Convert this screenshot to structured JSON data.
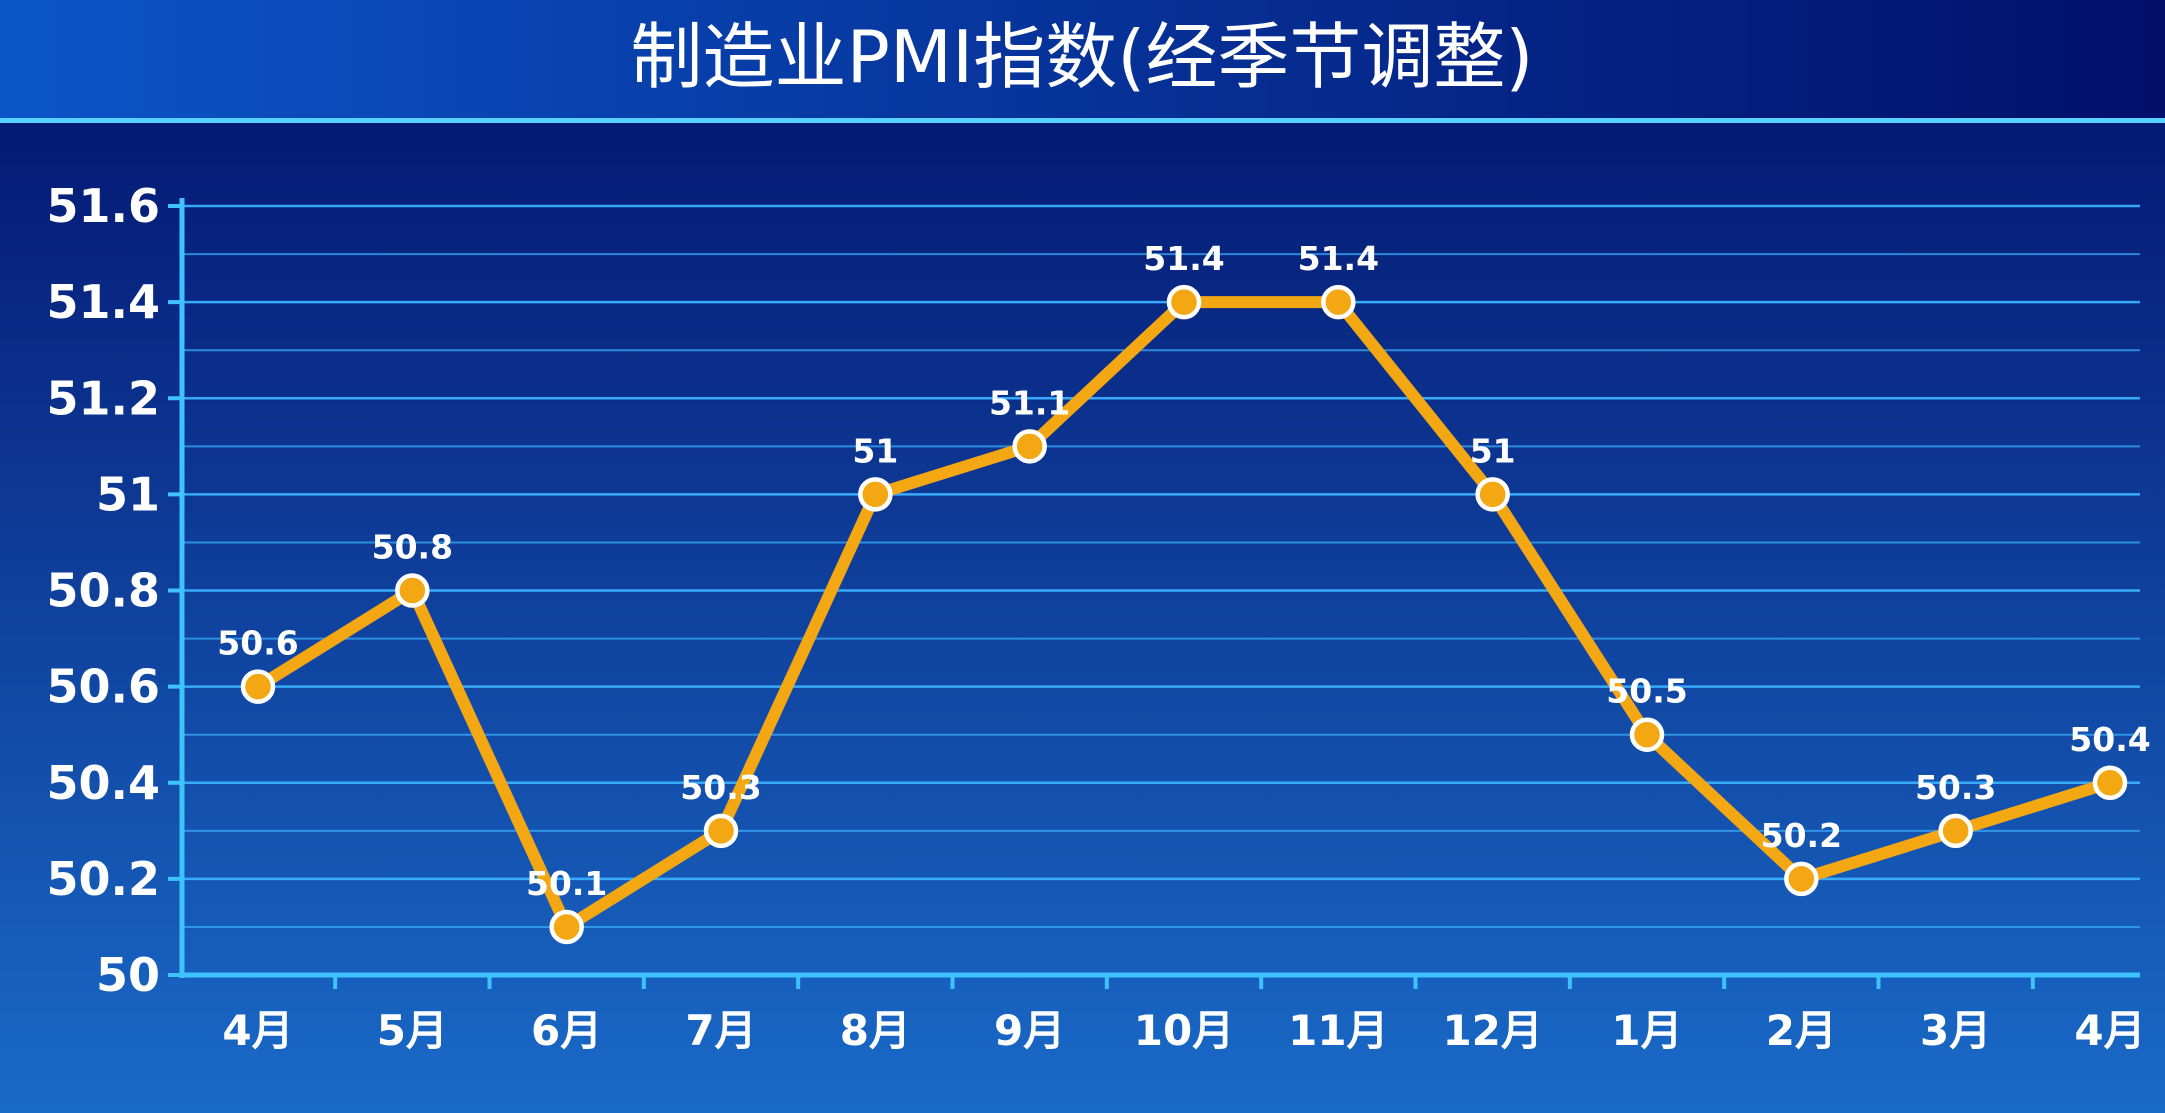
{
  "colors": {
    "background_top": "#02106a",
    "background_bottom": "#1a6ac8",
    "title_band_top": "#0a2f9a",
    "title_band_bottom": "#0b55c8",
    "line": "#f3a712",
    "marker_fill": "#f3a712",
    "marker_stroke": "#ffffff",
    "grid": "#3ab0ff",
    "axis": "#3fc3ff",
    "text": "#ffffff"
  },
  "chart_data": {
    "type": "line",
    "title": "制造业PMI指数(经季节调整)",
    "xlabel": "",
    "ylabel": "",
    "categories": [
      "4月",
      "5月",
      "6月",
      "7月",
      "8月",
      "9月",
      "10月",
      "11月",
      "12月",
      "1月",
      "2月",
      "3月",
      "4月"
    ],
    "series": [
      {
        "values": [
          50.6,
          50.8,
          50.1,
          50.3,
          51,
          51.1,
          51.4,
          51.4,
          51,
          50.5,
          50.2,
          50.3,
          50.4
        ]
      }
    ],
    "data_labels": [
      "50.6",
      "50.8",
      "50.1",
      "50.3",
      "51",
      "51.1",
      "51.4",
      "51.4",
      "51",
      "50.5",
      "50.2",
      "50.3",
      "50.4"
    ],
    "ylim": [
      50,
      51.6
    ],
    "yticks": [
      50,
      50.2,
      50.4,
      50.6,
      50.8,
      51,
      51.2,
      51.4,
      51.6
    ],
    "ytick_labels": [
      "50",
      "50.2",
      "50.4",
      "50.6",
      "50.8",
      "51",
      "51.2",
      "51.4",
      "51.6"
    ],
    "grid": true,
    "legend": "none"
  }
}
